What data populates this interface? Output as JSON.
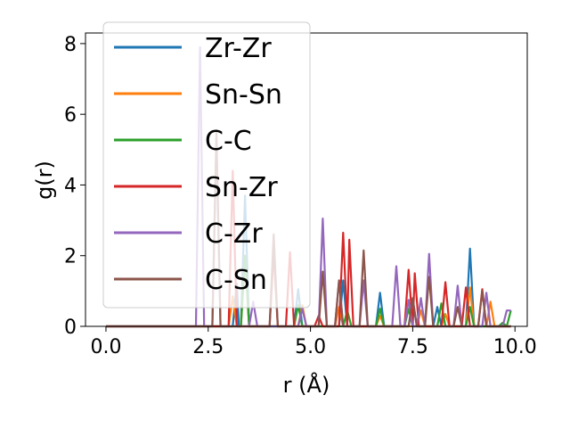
{
  "chart_data": {
    "type": "line",
    "xlabel": "r (Å)",
    "ylabel": "g(r)",
    "xlim": [
      -0.5,
      10.3
    ],
    "ylim": [
      0,
      8.3
    ],
    "xticks": [
      "0.0",
      "2.5",
      "5.0",
      "7.5",
      "10.0"
    ],
    "xtick_values": [
      0,
      2.5,
      5,
      7.5,
      10
    ],
    "yticks": [
      "0",
      "2",
      "4",
      "6",
      "8"
    ],
    "ytick_values": [
      0,
      2,
      4,
      6,
      8
    ],
    "legend_position": "upper-left",
    "series": [
      {
        "name": "Zr-Zr",
        "color": "#1f77b4",
        "points": [
          [
            0,
            0
          ],
          [
            3.1,
            0
          ],
          [
            3.2,
            1.2
          ],
          [
            3.25,
            0
          ],
          [
            3.3,
            0
          ],
          [
            3.4,
            3.7
          ],
          [
            3.5,
            0
          ],
          [
            4.6,
            0
          ],
          [
            4.7,
            1.05
          ],
          [
            4.8,
            0
          ],
          [
            5.7,
            0
          ],
          [
            5.8,
            1.3
          ],
          [
            5.9,
            0
          ],
          [
            6.6,
            0
          ],
          [
            6.7,
            0.95
          ],
          [
            6.8,
            0
          ],
          [
            7.4,
            0
          ],
          [
            7.5,
            0.75
          ],
          [
            7.6,
            0
          ],
          [
            8.0,
            0
          ],
          [
            8.1,
            0.55
          ],
          [
            8.2,
            0
          ],
          [
            8.8,
            0
          ],
          [
            8.9,
            2.2
          ],
          [
            9.0,
            0
          ],
          [
            9.9,
            0
          ]
        ]
      },
      {
        "name": "Sn-Sn",
        "color": "#ff7f0e",
        "points": [
          [
            0,
            0
          ],
          [
            3.0,
            0
          ],
          [
            3.1,
            0.85
          ],
          [
            3.2,
            0
          ],
          [
            3.3,
            0
          ],
          [
            3.4,
            2.0
          ],
          [
            3.5,
            0
          ],
          [
            4.7,
            0
          ],
          [
            4.8,
            0.6
          ],
          [
            4.9,
            0
          ],
          [
            5.6,
            0
          ],
          [
            5.7,
            0.55
          ],
          [
            5.8,
            0
          ],
          [
            6.6,
            0
          ],
          [
            6.7,
            0.3
          ],
          [
            6.8,
            0
          ],
          [
            7.6,
            0
          ],
          [
            7.7,
            0.45
          ],
          [
            7.8,
            0
          ],
          [
            8.2,
            0
          ],
          [
            8.3,
            0.35
          ],
          [
            8.4,
            0
          ],
          [
            8.8,
            0
          ],
          [
            8.9,
            1.1
          ],
          [
            9.0,
            0
          ],
          [
            9.3,
            0
          ],
          [
            9.4,
            0.7
          ],
          [
            9.5,
            0
          ],
          [
            9.9,
            0
          ]
        ]
      },
      {
        "name": "C-C",
        "color": "#2ca02c",
        "points": [
          [
            0,
            0
          ],
          [
            3.3,
            0
          ],
          [
            3.4,
            2.0
          ],
          [
            3.5,
            0
          ],
          [
            4.6,
            0
          ],
          [
            4.7,
            0.6
          ],
          [
            4.8,
            0
          ],
          [
            5.8,
            0
          ],
          [
            5.9,
            0.45
          ],
          [
            6.0,
            0
          ],
          [
            6.6,
            0
          ],
          [
            6.7,
            0.5
          ],
          [
            6.8,
            0
          ],
          [
            7.3,
            0
          ],
          [
            7.4,
            0.5
          ],
          [
            7.5,
            0
          ],
          [
            8.1,
            0
          ],
          [
            8.2,
            0.65
          ],
          [
            8.3,
            0
          ],
          [
            8.8,
            0
          ],
          [
            8.9,
            0.55
          ],
          [
            9.0,
            0
          ],
          [
            9.6,
            0
          ],
          [
            9.7,
            0.1
          ],
          [
            9.8,
            0
          ],
          [
            9.9,
            0.45
          ]
        ]
      },
      {
        "name": "Sn-Zr",
        "color": "#d62728",
        "points": [
          [
            0,
            0
          ],
          [
            3.0,
            0
          ],
          [
            3.1,
            4.4
          ],
          [
            3.2,
            0
          ],
          [
            3.3,
            0
          ],
          [
            4.0,
            0
          ],
          [
            4.1,
            2.1
          ],
          [
            4.2,
            0
          ],
          [
            4.4,
            0
          ],
          [
            4.5,
            2.1
          ],
          [
            4.6,
            0
          ],
          [
            5.1,
            0
          ],
          [
            5.2,
            0.3
          ],
          [
            5.3,
            0
          ],
          [
            5.7,
            0
          ],
          [
            5.8,
            2.65
          ],
          [
            5.9,
            0
          ],
          [
            5.95,
            2.45
          ],
          [
            6.05,
            0
          ],
          [
            7.3,
            0
          ],
          [
            7.4,
            1.6
          ],
          [
            7.5,
            0
          ],
          [
            7.55,
            1.5
          ],
          [
            7.65,
            0
          ],
          [
            8.2,
            0
          ],
          [
            8.3,
            1.25
          ],
          [
            8.4,
            0
          ],
          [
            8.7,
            0
          ],
          [
            8.8,
            1.1
          ],
          [
            8.9,
            0
          ],
          [
            9.1,
            0
          ],
          [
            9.2,
            1.05
          ],
          [
            9.3,
            0
          ],
          [
            9.9,
            0
          ]
        ]
      },
      {
        "name": "C-Zr",
        "color": "#9467bd",
        "points": [
          [
            0,
            0
          ],
          [
            2.2,
            0
          ],
          [
            2.3,
            7.9
          ],
          [
            2.4,
            0
          ],
          [
            2.6,
            0
          ],
          [
            2.7,
            5.3
          ],
          [
            2.8,
            0
          ],
          [
            3.5,
            0
          ],
          [
            3.6,
            0.7
          ],
          [
            3.7,
            0
          ],
          [
            4.7,
            0
          ],
          [
            4.8,
            0.5
          ],
          [
            4.9,
            0
          ],
          [
            5.2,
            0
          ],
          [
            5.3,
            3.05
          ],
          [
            5.4,
            0
          ],
          [
            5.6,
            0
          ],
          [
            5.7,
            1.3
          ],
          [
            5.8,
            0
          ],
          [
            6.2,
            0
          ],
          [
            6.3,
            1.3
          ],
          [
            6.4,
            0
          ],
          [
            7.0,
            0
          ],
          [
            7.1,
            1.7
          ],
          [
            7.2,
            0
          ],
          [
            7.3,
            0
          ],
          [
            7.4,
            0.75
          ],
          [
            7.5,
            0
          ],
          [
            7.6,
            0
          ],
          [
            7.7,
            0.8
          ],
          [
            7.8,
            0
          ],
          [
            7.9,
            2.05
          ],
          [
            8.0,
            0
          ],
          [
            8.5,
            0
          ],
          [
            8.6,
            1.15
          ],
          [
            8.7,
            0
          ],
          [
            9.2,
            0
          ],
          [
            9.3,
            0.95
          ],
          [
            9.4,
            0
          ],
          [
            9.7,
            0
          ],
          [
            9.8,
            0.45
          ],
          [
            9.9,
            0.45
          ]
        ]
      },
      {
        "name": "C-Sn",
        "color": "#8c564b",
        "points": [
          [
            0,
            0
          ],
          [
            2.6,
            0
          ],
          [
            2.7,
            5.5
          ],
          [
            2.8,
            0
          ],
          [
            4.0,
            0
          ],
          [
            4.1,
            2.6
          ],
          [
            4.2,
            0
          ],
          [
            5.2,
            0
          ],
          [
            5.3,
            1.55
          ],
          [
            5.4,
            0
          ],
          [
            5.6,
            0
          ],
          [
            5.7,
            1.3
          ],
          [
            5.8,
            0
          ],
          [
            6.2,
            0
          ],
          [
            6.3,
            2.15
          ],
          [
            6.4,
            0
          ],
          [
            7.4,
            0
          ],
          [
            7.5,
            0.8
          ],
          [
            7.6,
            0
          ],
          [
            7.8,
            0
          ],
          [
            7.9,
            1.4
          ],
          [
            8.0,
            0
          ],
          [
            8.5,
            0
          ],
          [
            8.6,
            0.55
          ],
          [
            8.7,
            0
          ],
          [
            9.1,
            0
          ],
          [
            9.2,
            1.0
          ],
          [
            9.3,
            0
          ],
          [
            9.9,
            0
          ]
        ]
      }
    ]
  }
}
